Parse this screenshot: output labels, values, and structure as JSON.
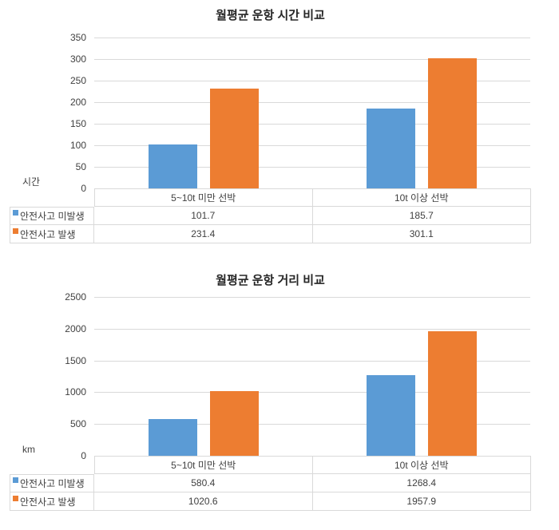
{
  "colors": {
    "series_blue": "#5B9BD5",
    "series_orange": "#ED7D31",
    "gridline": "#D9D9D9",
    "table_border": "#D9D9D9",
    "text": "#404040",
    "title_text": "#262626"
  },
  "chart_data": [
    {
      "type": "bar",
      "title": "월평균 운항 시간 비교",
      "ylabel": "시간",
      "xlabel": "",
      "categories": [
        "5~10t 미만 선박",
        "10t 이상 선박"
      ],
      "series": [
        {
          "name": "안전사고 미발생",
          "color": "#5B9BD5",
          "values": [
            101.7,
            185.7
          ],
          "display": [
            "101.7",
            "185.7"
          ]
        },
        {
          "name": "안전사고 발생",
          "color": "#ED7D31",
          "values": [
            231.4,
            301.1
          ],
          "display": [
            "231.4",
            "301.1"
          ]
        }
      ],
      "ylim": [
        0,
        350
      ],
      "yticks": [
        350,
        300,
        250,
        200,
        150,
        100,
        50,
        0
      ],
      "grid": true,
      "legend_position": "table-left"
    },
    {
      "type": "bar",
      "title": "월평균 운항 거리 비교",
      "ylabel": "km",
      "xlabel": "",
      "categories": [
        "5~10t 미만 선박",
        "10t 이상 선박"
      ],
      "series": [
        {
          "name": "안전사고 미발생",
          "color": "#5B9BD5",
          "values": [
            580.4,
            1268.4
          ],
          "display": [
            "580.4",
            "1268.4"
          ]
        },
        {
          "name": "안전사고 발생",
          "color": "#ED7D31",
          "values": [
            1020.6,
            1957.9
          ],
          "display": [
            "1020.6",
            "1957.9"
          ]
        }
      ],
      "ylim": [
        0,
        2500
      ],
      "yticks": [
        2500,
        2000,
        1500,
        1000,
        500,
        0
      ],
      "grid": true,
      "legend_position": "table-left"
    }
  ]
}
